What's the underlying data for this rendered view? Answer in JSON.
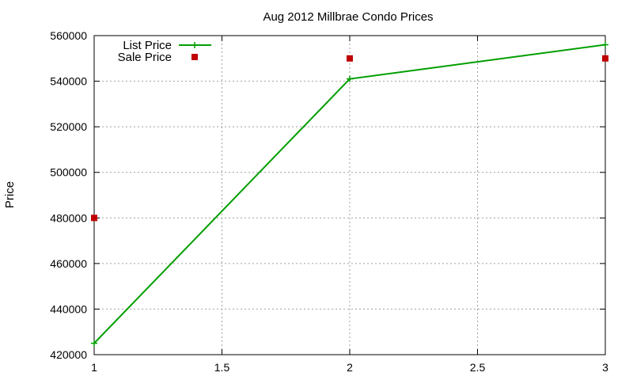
{
  "chart_data": {
    "type": "line",
    "title": "Aug 2012 Millbrae Condo Prices",
    "xlabel": "",
    "ylabel": "Price",
    "xlim": [
      1,
      3
    ],
    "ylim": [
      420000,
      560000
    ],
    "x_ticks": [
      "1",
      "1.5",
      "2",
      "2.5",
      "3"
    ],
    "y_ticks": [
      "420000",
      "440000",
      "460000",
      "480000",
      "500000",
      "520000",
      "540000",
      "560000"
    ],
    "grid": true,
    "legend_position": "top-left",
    "series": [
      {
        "name": "List Price",
        "style": "line-with-plus-markers",
        "color": "#009e00",
        "points": [
          {
            "x": 1,
            "y": 425000
          },
          {
            "x": 2,
            "y": 541000
          },
          {
            "x": 3,
            "y": 556000
          }
        ]
      },
      {
        "name": "Sale Price",
        "style": "square-markers",
        "color": "#c00000",
        "points": [
          {
            "x": 1,
            "y": 480000
          },
          {
            "x": 2,
            "y": 550000
          },
          {
            "x": 3,
            "y": 550000
          }
        ]
      }
    ]
  }
}
